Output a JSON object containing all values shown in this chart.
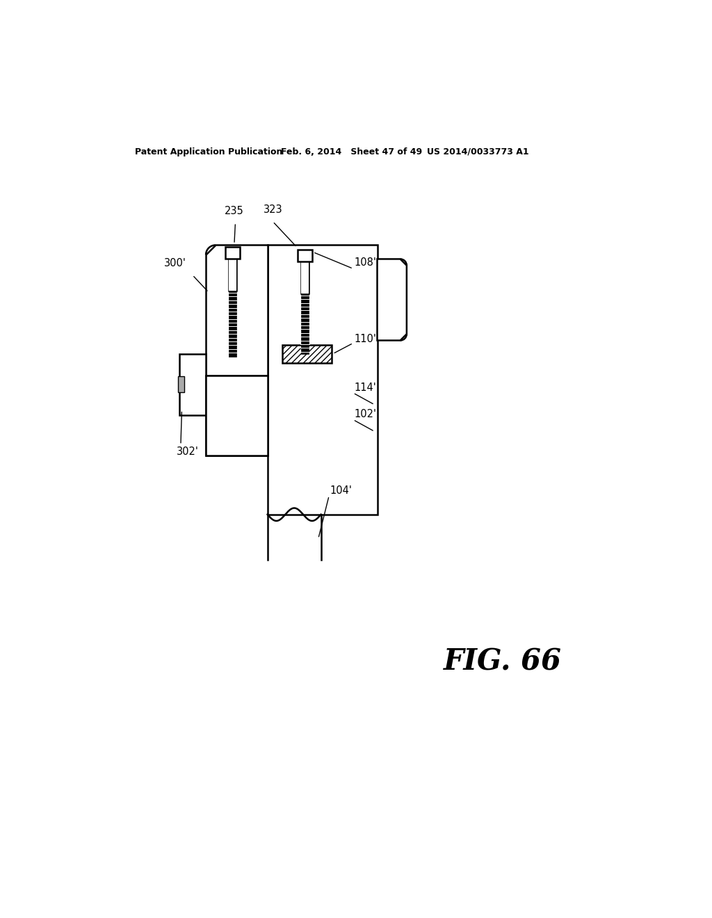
{
  "header_left": "Patent Application Publication",
  "header_mid": "Feb. 6, 2014   Sheet 47 of 49",
  "header_right": "US 2014/0033773 A1",
  "fig_label": "FIG. 66",
  "bg_color": "#ffffff",
  "line_color": "#000000"
}
